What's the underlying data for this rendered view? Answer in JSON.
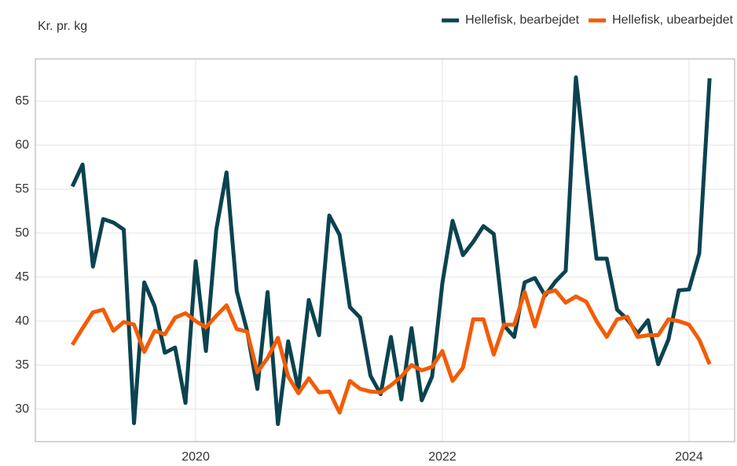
{
  "chart_data": {
    "type": "line",
    "y_label": "Kr. pr. kg",
    "x": [
      2019,
      2019.083,
      2019.167,
      2019.25,
      2019.333,
      2019.417,
      2019.5,
      2019.583,
      2019.667,
      2019.75,
      2019.833,
      2019.917,
      2020,
      2020.083,
      2020.167,
      2020.25,
      2020.333,
      2020.417,
      2020.5,
      2020.583,
      2020.667,
      2020.75,
      2020.833,
      2020.917,
      2021,
      2021.083,
      2021.167,
      2021.25,
      2021.333,
      2021.417,
      2021.5,
      2021.583,
      2021.667,
      2021.75,
      2021.833,
      2021.917,
      2022,
      2022.083,
      2022.167,
      2022.25,
      2022.333,
      2022.417,
      2022.5,
      2022.583,
      2022.667,
      2022.75,
      2022.833,
      2022.917,
      2023,
      2023.083,
      2023.167,
      2023.25,
      2023.333,
      2023.417,
      2023.5,
      2023.583,
      2023.667,
      2023.75,
      2023.833,
      2023.917,
      2024,
      2024.083,
      2024.167
    ],
    "series": [
      {
        "name": "Hellefisk, bearbejdet",
        "color": "#0b4350",
        "values": [
          55.3,
          57.8,
          46.2,
          51.6,
          51.2,
          50.4,
          28.4,
          44.4,
          41.7,
          36.4,
          37.0,
          30.7,
          46.8,
          36.6,
          50.4,
          56.9,
          43.4,
          38.9,
          32.3,
          43.3,
          28.3,
          37.7,
          32.2,
          42.4,
          38.4,
          52.0,
          49.8,
          41.6,
          40.4,
          33.8,
          31.7,
          38.2,
          31.1,
          39.2,
          31.0,
          33.7,
          44.3,
          51.4,
          47.5,
          49.0,
          50.8,
          49.9,
          39.5,
          38.2,
          44.4,
          44.9,
          42.9,
          44.5,
          45.7,
          67.7,
          57.0,
          47.1,
          47.1,
          41.3,
          40.2,
          38.6,
          40.1,
          35.1,
          37.9,
          43.5,
          43.6,
          47.7,
          67.6
        ]
      },
      {
        "name": "Hellefisk, ubearbejdet",
        "color": "#f25c05",
        "values": [
          37.3,
          39.2,
          41.0,
          41.3,
          38.9,
          39.9,
          39.6,
          36.5,
          38.9,
          38.5,
          40.4,
          40.9,
          40.0,
          39.3,
          40.6,
          41.8,
          39.1,
          38.8,
          34.2,
          35.8,
          38.1,
          33.7,
          31.8,
          33.5,
          31.9,
          32.0,
          29.6,
          33.2,
          32.3,
          32.0,
          31.9,
          32.7,
          33.7,
          35.0,
          34.4,
          34.8,
          36.6,
          33.2,
          34.7,
          40.2,
          40.2,
          36.2,
          39.6,
          39.6,
          43.3,
          39.4,
          43.2,
          43.5,
          42.1,
          42.8,
          42.2,
          40.0,
          38.2,
          40.2,
          40.5,
          38.2,
          38.4,
          38.4,
          40.2,
          40.0,
          39.6,
          37.9,
          35.1
        ]
      }
    ],
    "xlim": [
      2018.7,
      2024.37
    ],
    "xticks": [
      2020,
      2022,
      2024
    ],
    "ylim": [
      26.3,
      69.8
    ],
    "yticks": [
      30,
      35,
      40,
      45,
      50,
      55,
      60,
      65
    ],
    "grid": true,
    "legend": "top-right"
  }
}
